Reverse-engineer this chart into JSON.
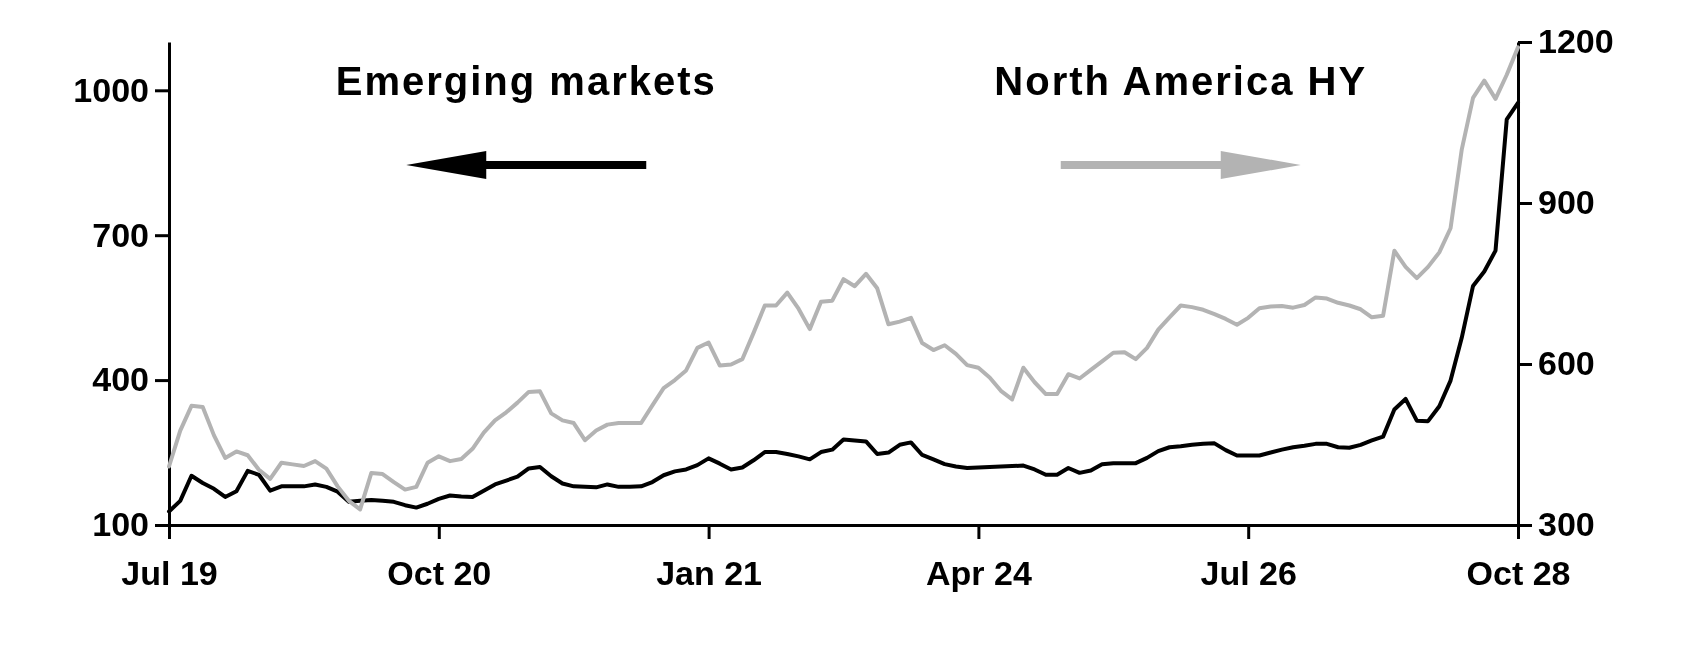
{
  "chart_data": {
    "type": "line",
    "legend": "top",
    "line_style": "solid",
    "categories": [
      "Jul 19",
      null,
      null,
      null,
      null,
      null,
      null,
      null,
      null,
      null,
      null,
      null,
      null,
      null,
      null,
      null,
      null,
      null,
      null,
      null,
      null,
      null,
      null,
      null,
      "Oct 20",
      null,
      null,
      null,
      null,
      null,
      null,
      null,
      null,
      null,
      null,
      null,
      null,
      null,
      null,
      null,
      null,
      null,
      null,
      null,
      null,
      null,
      null,
      null,
      "Jan 21",
      null,
      null,
      null,
      null,
      null,
      null,
      null,
      null,
      null,
      null,
      null,
      null,
      null,
      null,
      null,
      null,
      null,
      null,
      null,
      null,
      null,
      null,
      null,
      "Apr 24",
      null,
      null,
      null,
      null,
      null,
      null,
      null,
      null,
      null,
      null,
      null,
      null,
      null,
      null,
      null,
      null,
      null,
      null,
      null,
      null,
      null,
      null,
      null,
      "Jul 26",
      null,
      null,
      null,
      null,
      null,
      null,
      null,
      null,
      null,
      null,
      null,
      null,
      null,
      null,
      null,
      null,
      null,
      null,
      null,
      null,
      null,
      null,
      null,
      "Oct 28"
    ],
    "ylim": [
      100,
      1100
    ],
    "yticks": [
      100,
      400,
      700,
      1000
    ],
    "y2lim": [
      300,
      1200
    ],
    "y2ticks": [
      300,
      600,
      900,
      1200
    ],
    "series": [
      {
        "name": "Emerging markets",
        "color": "#000000",
        "axis": "y",
        "values": [
          128,
          150,
          202,
          187,
          175,
          158,
          170,
          212,
          204,
          171,
          180,
          180,
          180,
          184,
          179,
          169,
          148,
          150,
          152,
          150,
          148,
          141,
          136,
          144,
          154,
          161,
          159,
          158,
          171,
          184,
          192,
          200,
          217,
          220,
          201,
          186,
          180,
          179,
          178,
          184,
          179,
          179,
          180,
          189,
          203,
          211,
          215,
          224,
          238,
          227,
          215,
          219,
          234,
          251,
          251,
          247,
          242,
          236,
          251,
          256,
          277,
          275,
          273,
          247,
          250,
          266,
          271,
          245,
          236,
          226,
          221,
          218,
          219,
          220,
          221,
          222,
          223,
          215,
          204,
          204,
          218,
          208,
          213,
          226,
          228,
          228,
          228,
          239,
          253,
          261,
          263,
          266,
          268,
          269,
          255,
          244,
          244,
          244,
          250,
          256,
          261,
          264,
          268,
          268,
          261,
          260,
          266,
          275,
          283,
          339,
          361,
          316,
          315,
          346,
          399,
          488,
          595,
          625,
          668,
          940,
          974
        ]
      },
      {
        "name": "North America HY",
        "color": "#b3b3b3",
        "axis": "y2",
        "values": [
          409,
          476,
          522,
          520,
          467,
          425,
          437,
          430,
          403,
          386,
          416,
          413,
          410,
          419,
          405,
          372,
          345,
          329,
          397,
          395,
          380,
          366,
          371,
          416,
          428,
          419,
          423,
          442,
          472,
          495,
          510,
          528,
          548,
          549,
          508,
          495,
          490,
          458,
          476,
          487,
          490,
          490,
          490,
          523,
          555,
          570,
          588,
          630,
          640,
          597,
          599,
          609,
          658,
          709,
          709,
          733,
          703,
          665,
          716,
          718,
          758,
          745,
          768,
          741,
          674,
          679,
          686,
          639,
          626,
          635,
          619,
          598,
          593,
          575,
          550,
          534,
          593,
          566,
          544,
          544,
          581,
          573,
          589,
          605,
          621,
          622,
          609,
          630,
          664,
          687,
          709,
          706,
          701,
          693,
          684,
          673,
          686,
          704,
          707,
          708,
          705,
          710,
          724,
          722,
          714,
          709,
          702,
          687,
          690,
          811,
          781,
          760,
          781,
          808,
          853,
          1000,
          1096,
          1128,
          1094,
          1139,
          1190
        ]
      }
    ]
  }
}
